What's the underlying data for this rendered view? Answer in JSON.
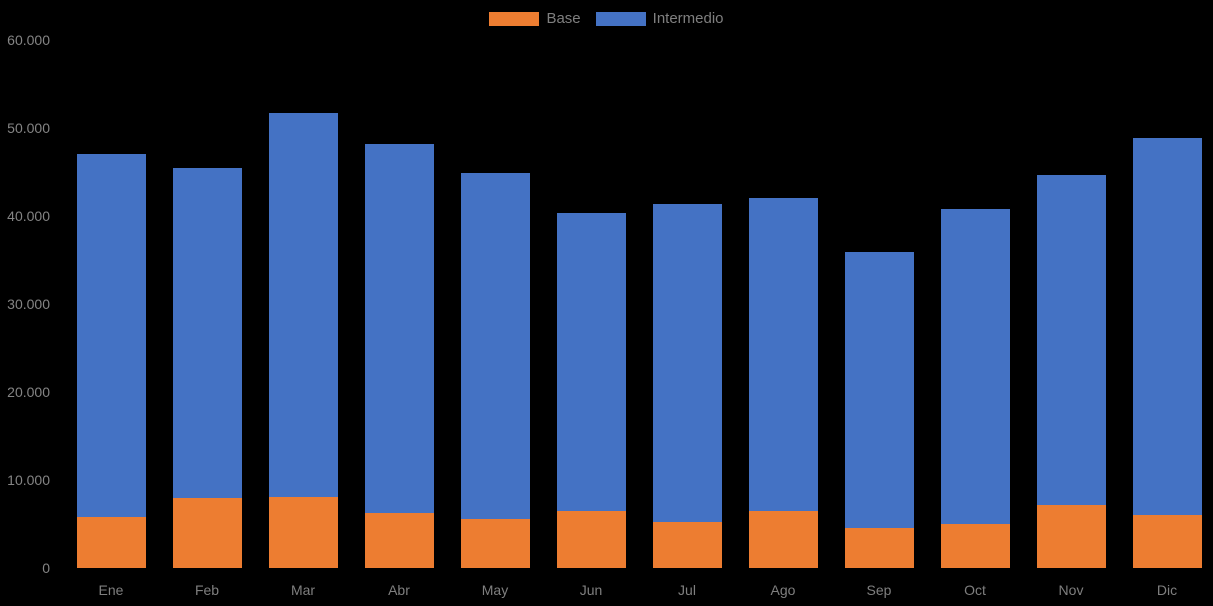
{
  "chart_data": {
    "type": "bar",
    "stacked": true,
    "title": "",
    "xlabel": "",
    "ylabel": "",
    "categories": [
      "Ene",
      "Feb",
      "Mar",
      "Abr",
      "May",
      "Jun",
      "Jul",
      "Ago",
      "Sep",
      "Oct",
      "Nov",
      "Dic"
    ],
    "series": [
      {
        "name": "Base",
        "color": "#ED7D31",
        "values": [
          5800,
          7900,
          8100,
          6200,
          5600,
          6500,
          5200,
          6500,
          4500,
          5000,
          7200,
          6000
        ]
      },
      {
        "name": "Intermedio",
        "color": "#4472C4",
        "values": [
          41200,
          37600,
          43600,
          42000,
          39300,
          33900,
          36200,
          35500,
          31400,
          35800,
          37500,
          42900
        ]
      }
    ],
    "stacked_totals": [
      47000,
      45500,
      51700,
      48200,
      44900,
      40400,
      41400,
      42000,
      35900,
      40800,
      44700,
      48900
    ],
    "ylim": [
      0,
      60000
    ],
    "ytick_interval": 10000,
    "ytick_labels": [
      "0",
      "10.000",
      "20.000",
      "30.000",
      "40.000",
      "50.000",
      "60.000"
    ],
    "grid": false,
    "legend_position": "top-center",
    "background_color": "#000000",
    "axis_text_color": "#848484",
    "legend_text_color": "#7f7f7f"
  }
}
